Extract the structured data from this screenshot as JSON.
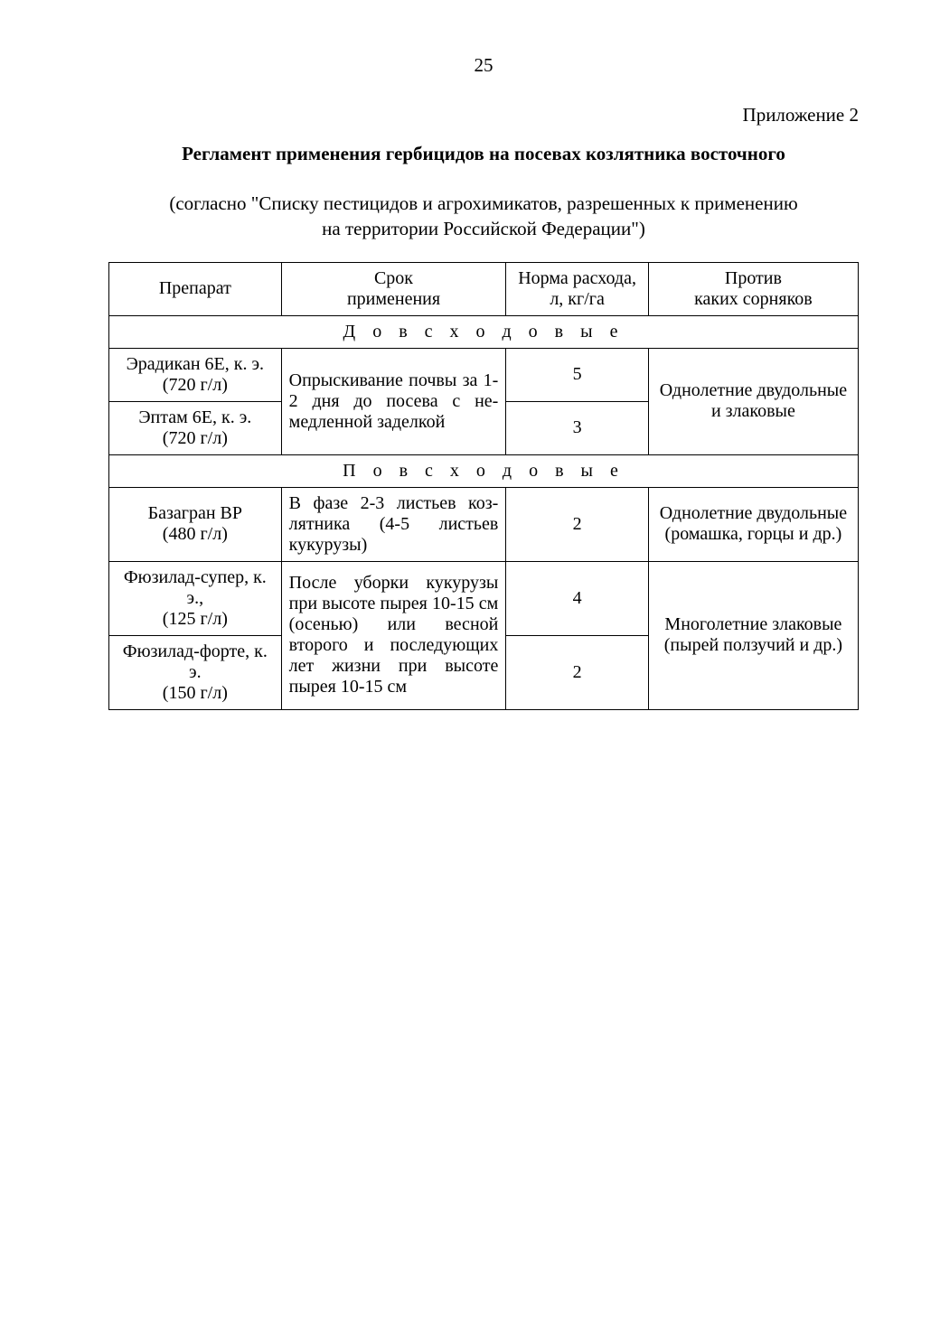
{
  "page_number": "25",
  "appendix": "Приложение 2",
  "title": "Регламент применения гербицидов на посевах козлятника восточного",
  "subtitle_line1": "(согласно \"Списку пестицидов и агрохимикатов, разрешенных к применению",
  "subtitle_line2": "на территории Российской Федерации\")",
  "headers": {
    "preparat": "Препарат",
    "srok_line1": "Срок",
    "srok_line2": "применения",
    "norma_line1": "Норма расхода,",
    "norma_line2": "л, кг/га",
    "protiv_line1": "Против",
    "protiv_line2": "каких сорняков"
  },
  "sections": {
    "pre": "Д о в с х о д о в ы е",
    "post": "П о в с х о д о в ы е"
  },
  "pre_rows": {
    "r1": {
      "prep_line1": "Эрадикан 6Е, к. э.",
      "prep_line2": "(720 г/л)",
      "norma": "5"
    },
    "r2": {
      "prep_line1": "Эптам 6Е, к. э.",
      "prep_line2": "(720 г/л)",
      "norma": "3"
    },
    "srok": "Опрыскивание почвы за 1-2 дня до посева с не­медленной заделкой",
    "protiv": "Однолетние двудольные и злаковые"
  },
  "post_rows": {
    "r1": {
      "prep_line1": "Базагран ВР",
      "prep_line2": "(480 г/л)",
      "srok": "В фазе 2-3 листьев коз­лятника (4-5 листьев кукурузы)",
      "norma": "2",
      "protiv": "Однолетние двудольные (ромашка, горцы и др.)"
    },
    "r2": {
      "prep_line1": "Фюзилад-супер, к. э.,",
      "prep_line2": "(125 г/л)",
      "norma": "4"
    },
    "r3": {
      "prep_line1": "Фюзилад-форте, к. э.",
      "prep_line2": "(150 г/л)",
      "norma": "2"
    },
    "srok_r23": "После уборки кукурузы при высоте пырея 10-15 см (осенью) или вес­ной второго и после­дующих лет жизни при высоте пырея 10-15 см",
    "protiv_r23": "Многолетние злаковые (пырей ползучий и др.)"
  }
}
